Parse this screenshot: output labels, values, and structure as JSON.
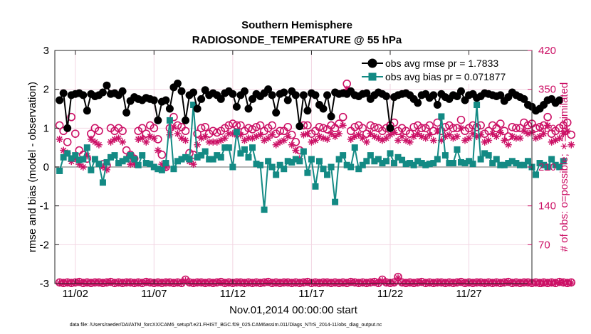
{
  "chart_data": {
    "type": "line",
    "title_line1": "Southern Hemisphere",
    "title_line2": "RADIOSONDE_TEMPERATURE @ 55 hPa",
    "xlabel": "Nov.01,2014 00:00:00 start",
    "ylabel": "rmse and bias (model - observation)",
    "ylabel_right": "# of obs: o=possible; ∗=assimilated",
    "footnote": "data file: /Users/raeder/DAI/ATM_forcXX/CAM6_setup/f.e21.FHIST_BGC.f09_025.CAM6assim.011/Diags_NTrS_2014-11/obs_diag_output.nc",
    "x_ticks": [
      2,
      7,
      12,
      17,
      22,
      27
    ],
    "x_tick_labels": [
      "11/02",
      "11/07",
      "11/12",
      "11/17",
      "11/22",
      "11/27"
    ],
    "xlim": [
      0.7,
      31.0
    ],
    "ylim": [
      -3,
      3
    ],
    "y_ticks": [
      -3,
      -2,
      -1,
      0,
      1,
      2,
      3
    ],
    "y_tick_labels": [
      "-3",
      "-2",
      "-1",
      "0",
      "1",
      "2",
      "3"
    ],
    "ylim_right": [
      0,
      420
    ],
    "y_ticks_right": [
      0,
      70,
      140,
      210,
      280,
      350,
      420
    ],
    "y_tick_labels_right": [
      "0",
      "70",
      "140",
      "210",
      "280",
      "350",
      "420"
    ],
    "x_start": 1.0,
    "x_step": 0.25,
    "series": [
      {
        "name": "obs avg rmse",
        "legend": "obs avg rmse pr = 1.7833",
        "axis": "left",
        "color": "#000000",
        "marker": "circle",
        "values": [
          1.72,
          1.9,
          1.0,
          1.85,
          1.88,
          1.9,
          1.85,
          1.45,
          1.88,
          1.82,
          1.85,
          1.92,
          2.1,
          1.88,
          1.9,
          1.85,
          1.95,
          1.4,
          1.7,
          1.8,
          1.75,
          1.72,
          1.78,
          1.75,
          1.72,
          1.2,
          1.68,
          1.72,
          1.5,
          2.05,
          2.15,
          1.95,
          1.2,
          1.85,
          1.92,
          1.5,
          1.75,
          1.98,
          1.85,
          1.9,
          1.85,
          1.75,
          1.9,
          1.95,
          1.88,
          1.55,
          1.85,
          1.95,
          1.5,
          1.75,
          1.88,
          1.82,
          1.9,
          2.0,
          1.85,
          1.4,
          1.88,
          1.92,
          1.72,
          1.95,
          1.85,
          1.05,
          1.85,
          1.45,
          1.9,
          1.85,
          1.6,
          1.5,
          1.85,
          1.3,
          1.92,
          1.88,
          1.9,
          1.88,
          1.95,
          1.85,
          1.82,
          1.88,
          1.9,
          1.75,
          1.85,
          1.92,
          1.88,
          1.82,
          1.0,
          1.8,
          1.85,
          1.88,
          1.9,
          1.85,
          1.75,
          1.65,
          1.85,
          1.88,
          1.78,
          1.85,
          1.6,
          1.88,
          1.8,
          1.75,
          1.85,
          1.82,
          1.95,
          1.72,
          1.85,
          1.88,
          1.78,
          1.82,
          1.9,
          1.88,
          1.85,
          1.82,
          1.85,
          1.7,
          1.8,
          1.92,
          1.85,
          1.8,
          1.75,
          1.6,
          1.55,
          1.45,
          1.5,
          1.6,
          1.72,
          1.75,
          1.65,
          1.72
        ]
      },
      {
        "name": "obs avg bias",
        "legend": "obs avg bias pr = 0.071877",
        "axis": "left",
        "color": "#138a84",
        "marker": "square",
        "values": [
          -0.1,
          0.25,
          0.35,
          0.22,
          0.3,
          0.18,
          0.2,
          0.5,
          -0.08,
          0.2,
          0.08,
          -0.4,
          0.12,
          0.25,
          0.3,
          0.1,
          0.15,
          0.2,
          0.3,
          0.2,
          0.05,
          0.3,
          0.1,
          0.08,
          0.0,
          -0.05,
          -0.08,
          0.1,
          1.2,
          -0.05,
          0.15,
          0.2,
          0.25,
          0.2,
          1.6,
          0.25,
          0.3,
          0.4,
          0.2,
          0.2,
          0.3,
          0.25,
          0.5,
          0.5,
          0.0,
          0.9,
          0.35,
          0.45,
          0.25,
          0.5,
          0.08,
          0.05,
          -1.1,
          0.15,
          0.0,
          -0.2,
          0.05,
          -0.05,
          0.15,
          0.12,
          0.2,
          0.15,
          0.4,
          -0.15,
          0.2,
          -0.5,
          0.15,
          -0.05,
          -0.2,
          0.0,
          -0.9,
          0.2,
          0.3,
          0.05,
          0.0,
          0.5,
          -0.05,
          0.05,
          0.15,
          0.3,
          0.15,
          0.2,
          0.1,
          0.15,
          0.35,
          0.1,
          0.25,
          0.18,
          0.08,
          0.1,
          0.05,
          0.15,
          0.1,
          0.05,
          0.08,
          0.1,
          0.2,
          1.3,
          0.3,
          0.1,
          0.1,
          0.45,
          0.12,
          0.1,
          0.15,
          0.08,
          1.6,
          0.2,
          0.35,
          0.3,
          0.1,
          0.2,
          0.05,
          0.05,
          0.1,
          0.15,
          0.1,
          0.05,
          0.05,
          0.15,
          0.0,
          -0.2,
          0.1,
          0.05,
          0.0,
          0.2,
          0.05,
          0.0,
          0.15
        ]
      },
      {
        "name": "possible",
        "axis": "right",
        "color": "#cc1166",
        "marker": "open-circle",
        "values": [
          285,
          275,
          255,
          300,
          270,
          240,
          232,
          225,
          270,
          280,
          275,
          215,
          213,
          280,
          275,
          280,
          275,
          240,
          232,
          225,
          275,
          280,
          270,
          285,
          280,
          260,
          232,
          210,
          280,
          300,
          285,
          282,
          275,
          235,
          232,
          270,
          280,
          282,
          270,
          275,
          272,
          275,
          280,
          285,
          288,
          285,
          285,
          275,
          280,
          278,
          282,
          285,
          275,
          280,
          285,
          270,
          275,
          275,
          282,
          268,
          255,
          240,
          285,
          285,
          270,
          275,
          282,
          280,
          278,
          285,
          280,
          288,
          300,
          360,
          275,
          282,
          285,
          280,
          270,
          285,
          282,
          280,
          275,
          280,
          285,
          290,
          275,
          280,
          275,
          270,
          282,
          285,
          280,
          280,
          285,
          275,
          290,
          275,
          282,
          285,
          280,
          280,
          295,
          275,
          280,
          285,
          282,
          285,
          270,
          275,
          285,
          280,
          288,
          275,
          265,
          282,
          280,
          280,
          290,
          285,
          288,
          280,
          282,
          285,
          300,
          270,
          275,
          280,
          285,
          290,
          268
        ]
      },
      {
        "name": "assimilated",
        "axis": "right",
        "color": "#cc1166",
        "marker": "asterisk",
        "values": [
          260,
          240,
          235,
          220,
          225,
          215,
          210,
          230,
          260,
          255,
          250,
          210,
          205,
          255,
          260,
          262,
          255,
          225,
          215,
          215,
          260,
          262,
          255,
          265,
          262,
          240,
          215,
          210,
          268,
          282,
          270,
          262,
          258,
          220,
          215,
          250,
          262,
          265,
          255,
          255,
          255,
          258,
          262,
          270,
          270,
          268,
          268,
          258,
          262,
          262,
          265,
          268,
          258,
          262,
          268,
          250,
          255,
          258,
          265,
          250,
          240,
          225,
          268,
          270,
          255,
          258,
          265,
          262,
          260,
          270,
          265,
          270,
          285,
          350,
          260,
          265,
          268,
          262,
          255,
          270,
          265,
          262,
          258,
          262,
          268,
          272,
          258,
          265,
          258,
          255,
          265,
          270,
          265,
          262,
          268,
          258,
          275,
          258,
          265,
          268,
          262,
          265,
          280,
          258,
          262,
          270,
          265,
          268,
          255,
          258,
          270,
          265,
          272,
          258,
          250,
          265,
          262,
          262,
          275,
          270,
          272,
          262,
          265,
          270,
          285,
          255,
          258,
          262,
          270,
          275,
          250
        ]
      },
      {
        "name": "possible-bottom",
        "axis": "right",
        "color": "#cc1166",
        "marker": "open-circle",
        "values": [
          2,
          1,
          2,
          1,
          2,
          3,
          1,
          2,
          1,
          2,
          2,
          1,
          2,
          3,
          1,
          2,
          1,
          2,
          2,
          1,
          2,
          1,
          3,
          2,
          1,
          2,
          1,
          2,
          2,
          1,
          2,
          1,
          7,
          2,
          1,
          2,
          2,
          1,
          2,
          1,
          2,
          3,
          1,
          2,
          1,
          2,
          2,
          1,
          2,
          1,
          2,
          1,
          2,
          3,
          1,
          2,
          1,
          2,
          2,
          1,
          2,
          1,
          2,
          3,
          1,
          2,
          1,
          2,
          2,
          1,
          2,
          1,
          2,
          1,
          3,
          2,
          1,
          2,
          1,
          2,
          3,
          1,
          7,
          2,
          1,
          2,
          12,
          2,
          1,
          2,
          1,
          2,
          3,
          1,
          2,
          1,
          2,
          2,
          1,
          2,
          1,
          2,
          3,
          1,
          2,
          1,
          2,
          2,
          1,
          2,
          1,
          2,
          1,
          2,
          3,
          1,
          2,
          1,
          2,
          2,
          1,
          2,
          1,
          2,
          1,
          2,
          1,
          3,
          2,
          1,
          2
        ]
      },
      {
        "name": "assimilated-bottom",
        "axis": "right",
        "color": "#cc1166",
        "marker": "asterisk",
        "values": [
          1,
          1,
          1,
          1,
          1,
          2,
          1,
          1,
          1,
          1,
          1,
          1,
          1,
          2,
          1,
          1,
          1,
          1,
          1,
          1,
          1,
          1,
          2,
          1,
          1,
          1,
          1,
          1,
          1,
          1,
          1,
          1,
          5,
          1,
          1,
          1,
          1,
          1,
          1,
          1,
          1,
          2,
          1,
          1,
          1,
          1,
          1,
          1,
          1,
          1,
          1,
          1,
          1,
          2,
          1,
          1,
          1,
          1,
          1,
          1,
          1,
          1,
          1,
          2,
          1,
          1,
          1,
          1,
          1,
          1,
          1,
          1,
          1,
          1,
          2,
          1,
          1,
          1,
          1,
          1,
          2,
          1,
          5,
          1,
          1,
          1,
          10,
          1,
          1,
          1,
          1,
          1,
          2,
          1,
          1,
          1,
          1,
          1,
          1,
          1,
          1,
          1,
          2,
          1,
          1,
          1,
          1,
          1,
          1,
          1,
          1,
          1,
          1,
          1,
          2,
          1,
          1,
          1,
          1,
          1,
          1,
          1,
          1,
          1,
          1,
          1,
          1,
          2,
          1,
          1,
          1
        ]
      }
    ]
  }
}
